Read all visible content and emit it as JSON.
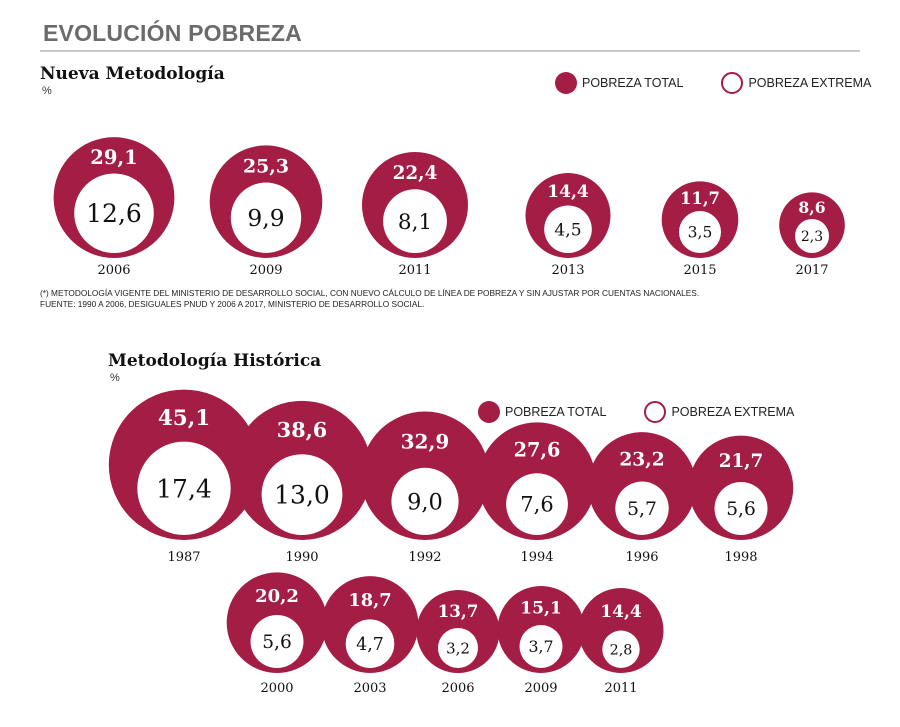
{
  "header": {
    "title": "EVOLUCIÓN POBREZA"
  },
  "legend": {
    "total_label": "POBREZA TOTAL",
    "extreme_label": "POBREZA EXTREMA"
  },
  "colors": {
    "accent": "#a31d45",
    "inner": "#ffffff",
    "rule": "#c9c9c9"
  },
  "section1": {
    "title": "Nueva Metodología",
    "unit": "%",
    "note_line1": "(*) METODOLOGÍA VIGENTE DEL MINISTERIO DE DESARROLLO SOCIAL, CON NUEVO CÁLCULO DE LÍNEA DE POBREZA Y SIN AJUSTAR POR CUENTAS NACIONALES.",
    "note_line2": "FUENTE: 1990 A 2006, DESIGUALES PNUD Y 2006 A 2017, MINISTERIO DE DESARROLLO SOCIAL."
  },
  "section2": {
    "title": "Metodología Histórica",
    "unit": "%"
  },
  "chart_data": [
    {
      "type": "bubble",
      "title": "Nueva Metodología",
      "ylabel": "%",
      "categories": [
        "2006",
        "2009",
        "2011",
        "2013",
        "2015",
        "2017"
      ],
      "series": [
        {
          "name": "POBREZA TOTAL",
          "values": [
            29.1,
            25.3,
            22.4,
            14.4,
            11.7,
            8.6
          ],
          "labels": [
            "29,1",
            "25,3",
            "22,4",
            "14,4",
            "11,7",
            "8,6"
          ]
        },
        {
          "name": "POBREZA EXTREMA",
          "values": [
            12.6,
            9.9,
            8.1,
            4.5,
            3.5,
            2.3
          ],
          "labels": [
            "12,6",
            "9,9",
            "8,1",
            "4,5",
            "3,5",
            "2,3"
          ]
        }
      ]
    },
    {
      "type": "bubble",
      "title": "Metodología Histórica",
      "ylabel": "%",
      "categories": [
        "1987",
        "1990",
        "1992",
        "1994",
        "1996",
        "1998",
        "2000",
        "2003",
        "2006",
        "2009",
        "2011"
      ],
      "series": [
        {
          "name": "POBREZA TOTAL",
          "values": [
            45.1,
            38.6,
            32.9,
            27.6,
            23.2,
            21.7,
            20.2,
            18.7,
            13.7,
            15.1,
            14.4
          ],
          "labels": [
            "45,1",
            "38,6",
            "32,9",
            "27,6",
            "23,2",
            "21,7",
            "20,2",
            "18,7",
            "13,7",
            "15,1",
            "14,4"
          ]
        },
        {
          "name": "POBREZA EXTREMA",
          "values": [
            17.4,
            13.0,
            9.0,
            7.6,
            5.7,
            5.6,
            5.6,
            4.7,
            3.2,
            3.7,
            2.8
          ],
          "labels": [
            "17,4",
            "13,0",
            "9,0",
            "7,6",
            "5,7",
            "5,6",
            "5,6",
            "4,7",
            "3,2",
            "3,7",
            "2,8"
          ]
        }
      ]
    }
  ]
}
